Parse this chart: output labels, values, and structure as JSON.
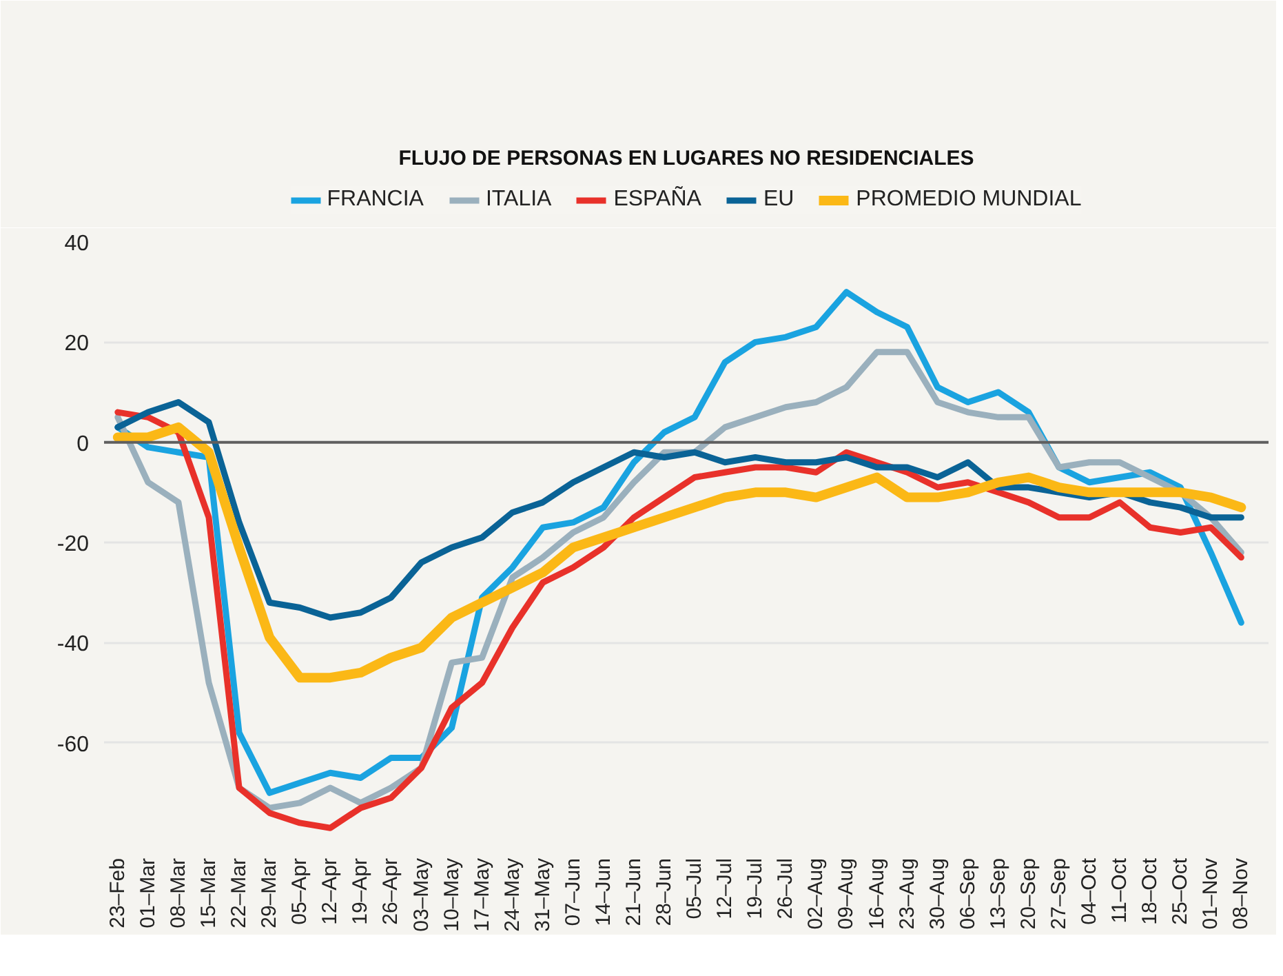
{
  "chart_data": {
    "type": "line",
    "title": "FLUJO DE PERSONAS EN LUGARES NO RESIDENCIALES",
    "categories": [
      "23–Feb",
      "01–Mar",
      "08–Mar",
      "15–Mar",
      "22–Mar",
      "29–Mar",
      "05–Apr",
      "12–Apr",
      "19–Apr",
      "26–Apr",
      "03–May",
      "10–May",
      "17–May",
      "24–May",
      "31–May",
      "07–Jun",
      "14–Jun",
      "21–Jun",
      "28–Jun",
      "05–Jul",
      "12–Jul",
      "19–Jul",
      "26–Jul",
      "02–Aug",
      "09–Aug",
      "16–Aug",
      "23–Aug",
      "30–Aug",
      "06–Sep",
      "13–Sep",
      "20–Sep",
      "27–Sep",
      "04–Oct",
      "11–Oct",
      "18–Oct",
      "25–Oct",
      "01–Nov",
      "08–Nov"
    ],
    "series": [
      {
        "name": "FRANCIA",
        "color": "#1aa3e0",
        "values": [
          3,
          -1,
          -2,
          -3,
          -58,
          -70,
          -68,
          -66,
          -67,
          -63,
          -63,
          -57,
          -31,
          -25,
          -17,
          -16,
          -13,
          -4,
          2,
          5,
          16,
          20,
          21,
          23,
          30,
          26,
          23,
          11,
          8,
          10,
          6,
          -5,
          -8,
          -7,
          -6,
          -9,
          -22,
          -36
        ]
      },
      {
        "name": "ITALIA",
        "color": "#9ab0bd",
        "values": [
          5,
          -8,
          -12,
          -48,
          -69,
          -73,
          -72,
          -69,
          -72,
          -69,
          -65,
          -44,
          -43,
          -27,
          -23,
          -18,
          -15,
          -8,
          -2,
          -2,
          3,
          5,
          7,
          8,
          11,
          18,
          18,
          8,
          6,
          5,
          5,
          -5,
          -4,
          -4,
          -7,
          -10,
          -15,
          -22
        ]
      },
      {
        "name": "ESPAÑA",
        "color": "#e8312a",
        "values": [
          6,
          5,
          2,
          -15,
          -69,
          -74,
          -76,
          -77,
          -73,
          -71,
          -65,
          -53,
          -48,
          -37,
          -28,
          -25,
          -21,
          -15,
          -11,
          -7,
          -6,
          -5,
          -5,
          -6,
          -2,
          -4,
          -6,
          -9,
          -8,
          -10,
          -12,
          -15,
          -15,
          -12,
          -17,
          -18,
          -17,
          -23
        ]
      },
      {
        "name": "EU",
        "color": "#0a6396",
        "values": [
          3,
          6,
          8,
          4,
          -16,
          -32,
          -33,
          -35,
          -34,
          -31,
          -24,
          -21,
          -19,
          -14,
          -12,
          -8,
          -5,
          -2,
          -3,
          -2,
          -4,
          -3,
          -4,
          -4,
          -3,
          -5,
          -5,
          -7,
          -4,
          -9,
          -9,
          -10,
          -11,
          -10,
          -12,
          -13,
          -15,
          -15
        ]
      },
      {
        "name": "PROMEDIO MUNDIAL",
        "color": "#fbb816",
        "values": [
          1,
          1,
          3,
          -2,
          -21,
          -39,
          -47,
          -47,
          -46,
          -43,
          -41,
          -35,
          -32,
          -29,
          -26,
          -21,
          -19,
          -17,
          -15,
          -13,
          -11,
          -10,
          -10,
          -11,
          -9,
          -7,
          -11,
          -11,
          -10,
          -8,
          -7,
          -9,
          -10,
          -10,
          -10,
          -10,
          -11,
          -13
        ]
      }
    ],
    "ylim": [
      -80,
      40
    ],
    "yticks": [
      {
        "value": -80,
        "label": null
      },
      -60,
      -40,
      -20,
      0,
      20,
      40
    ],
    "ref_lines": [
      {
        "axis": "y",
        "value": 0,
        "color": "#5f5f5f"
      }
    ],
    "grid": "y",
    "legend": "top",
    "line_style": "solid"
  }
}
